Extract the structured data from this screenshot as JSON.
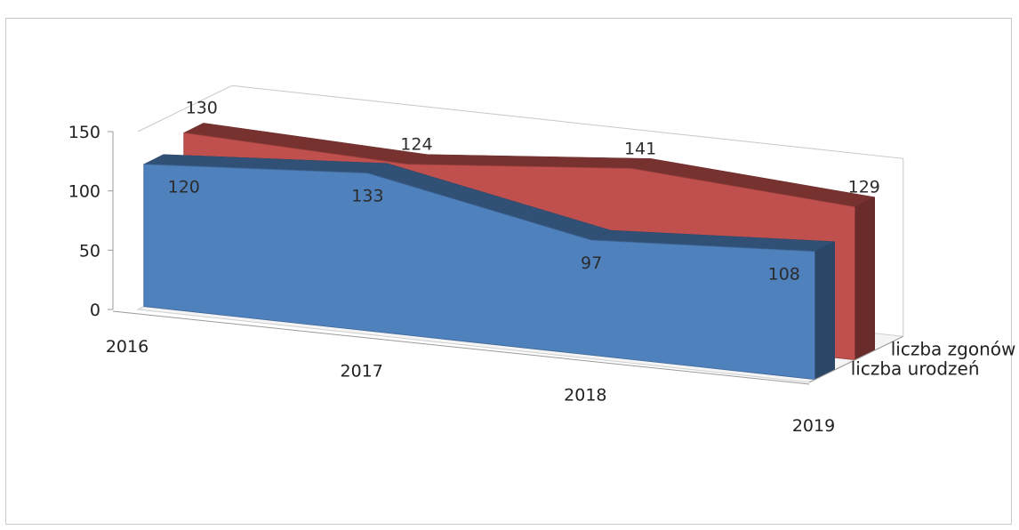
{
  "chart_data": {
    "type": "area",
    "style": "3d",
    "categories": [
      "2016",
      "2017",
      "2018",
      "2019"
    ],
    "series": [
      {
        "name": "liczba zgonów",
        "values": [
          130,
          124,
          141,
          129
        ],
        "color": "#c0504d"
      },
      {
        "name": "liczba urodzeń",
        "values": [
          120,
          133,
          97,
          108
        ],
        "color": "#4f81bd"
      }
    ],
    "ylim": [
      0,
      150
    ],
    "yticks": [
      "0",
      "50",
      "100",
      "150"
    ],
    "grid": false,
    "legend_position": "right"
  }
}
